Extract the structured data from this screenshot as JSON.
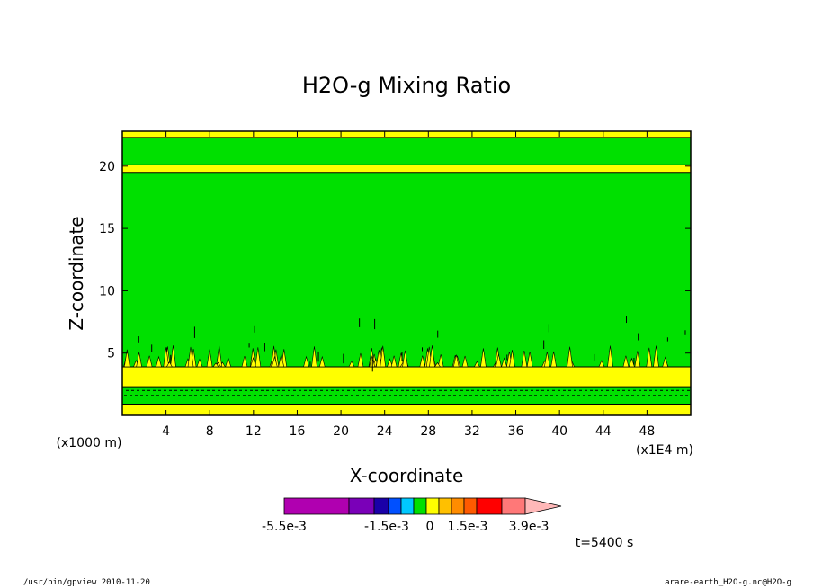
{
  "chart_data": {
    "type": "heatmap",
    "title": "H2O-g Mixing Ratio",
    "xlabel": "X-coordinate",
    "ylabel": "Z-coordinate",
    "x_unit": "(x1E4 m)",
    "y_unit": "(x1000 m)",
    "xlim": [
      0,
      52
    ],
    "ylim": [
      0,
      22.8
    ],
    "x_ticks": [
      "4",
      "8",
      "12",
      "16",
      "20",
      "24",
      "28",
      "32",
      "36",
      "40",
      "44",
      "48"
    ],
    "y_ticks": [
      "5",
      "10",
      "15",
      "20"
    ],
    "bands": [
      {
        "z_from": 0.0,
        "z_to": 0.9,
        "color": "#ffff00"
      },
      {
        "z_from": 0.9,
        "z_to": 2.3,
        "color": "#00e000"
      },
      {
        "z_from": 2.3,
        "z_to": 3.9,
        "color": "#ffff00"
      },
      {
        "z_from": 3.9,
        "z_to": 19.5,
        "color": "#00e000"
      },
      {
        "z_from": 19.5,
        "z_to": 20.1,
        "color": "#ffff00"
      },
      {
        "z_from": 20.1,
        "z_to": 22.3,
        "color": "#00e000"
      },
      {
        "z_from": 22.3,
        "z_to": 22.8,
        "color": "#ffff00"
      }
    ],
    "colorbar": {
      "colors": [
        "#b000b0",
        "#b000b0",
        "#7a00b8",
        "#1a00a8",
        "#0050ff",
        "#00c8ff",
        "#00e000",
        "#ffff00",
        "#ffc000",
        "#ff8c00",
        "#ff5a00",
        "#ff0000",
        "#ff0000",
        "#ff7878",
        "#ffb8b8"
      ],
      "labels": [
        "-5.5e-3",
        "-1.5e-3",
        "0",
        "1.5e-3",
        "3.9e-3"
      ]
    },
    "time_label": "t=5400 s"
  },
  "footer": {
    "left": "/usr/bin/gpview 2010-11-20",
    "right": "arare-earth_H2O-g.nc@H2O-g"
  }
}
